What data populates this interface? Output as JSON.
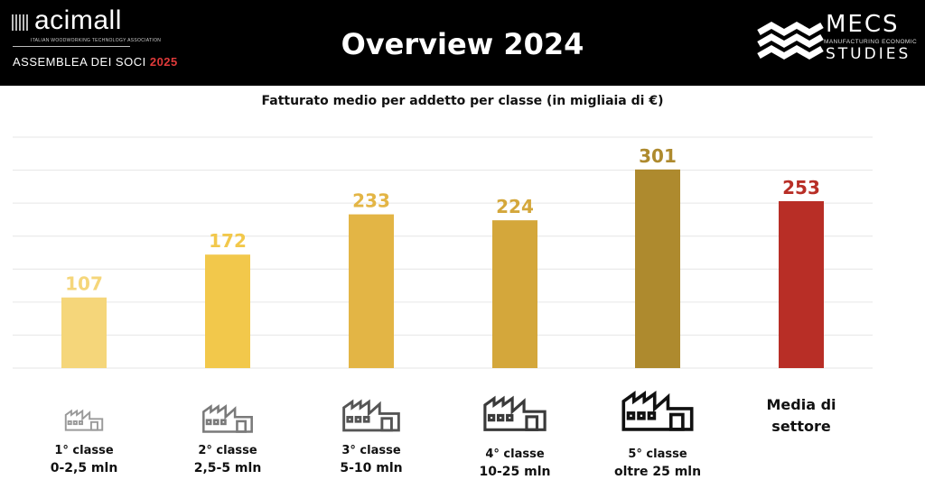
{
  "header": {
    "title": "Overview 2024",
    "left_logo": {
      "name": "acimall",
      "tagline": "ITALIAN WOODWORKING TECHNOLOGY ASSOCIATION",
      "event": "ASSEMBLEA DEI SOCI",
      "event_year": "2025"
    },
    "right_logo": {
      "name": "MECS",
      "tagline": "MANUFACTURING ECONOMIC",
      "subname": "STUDIES"
    }
  },
  "chart_data": {
    "type": "bar",
    "title": "Fatturato medio per addetto per classe (in migliaia di €)",
    "categories": [
      {
        "line1": "1° classe",
        "line2": "0-2,5 mln",
        "icon": "factory-icon",
        "icon_color": "#9a9a9a"
      },
      {
        "line1": "2° classe",
        "line2": "2,5-5 mln",
        "icon": "factory-icon",
        "icon_color": "#7a7a7a"
      },
      {
        "line1": "3° classe",
        "line2": "5-10 mln",
        "icon": "factory-icon",
        "icon_color": "#555555"
      },
      {
        "line1": "4° classe",
        "line2": "10-25 mln",
        "icon": "factory-icon",
        "icon_color": "#3a3a3a"
      },
      {
        "line1": "5° classe",
        "line2": "oltre 25 mln",
        "icon": "factory-icon",
        "icon_color": "#111111"
      },
      {
        "line1": "Media di",
        "line2": "settore",
        "icon": "",
        "icon_color": ""
      }
    ],
    "values": [
      107,
      172,
      233,
      224,
      301,
      253
    ],
    "colors": [
      "#f5d67a",
      "#f2c84b",
      "#e3b545",
      "#d4a73b",
      "#ae8a2e",
      "#b82e26"
    ],
    "ylim": [
      0,
      350
    ],
    "grid": true,
    "legend": "none"
  }
}
